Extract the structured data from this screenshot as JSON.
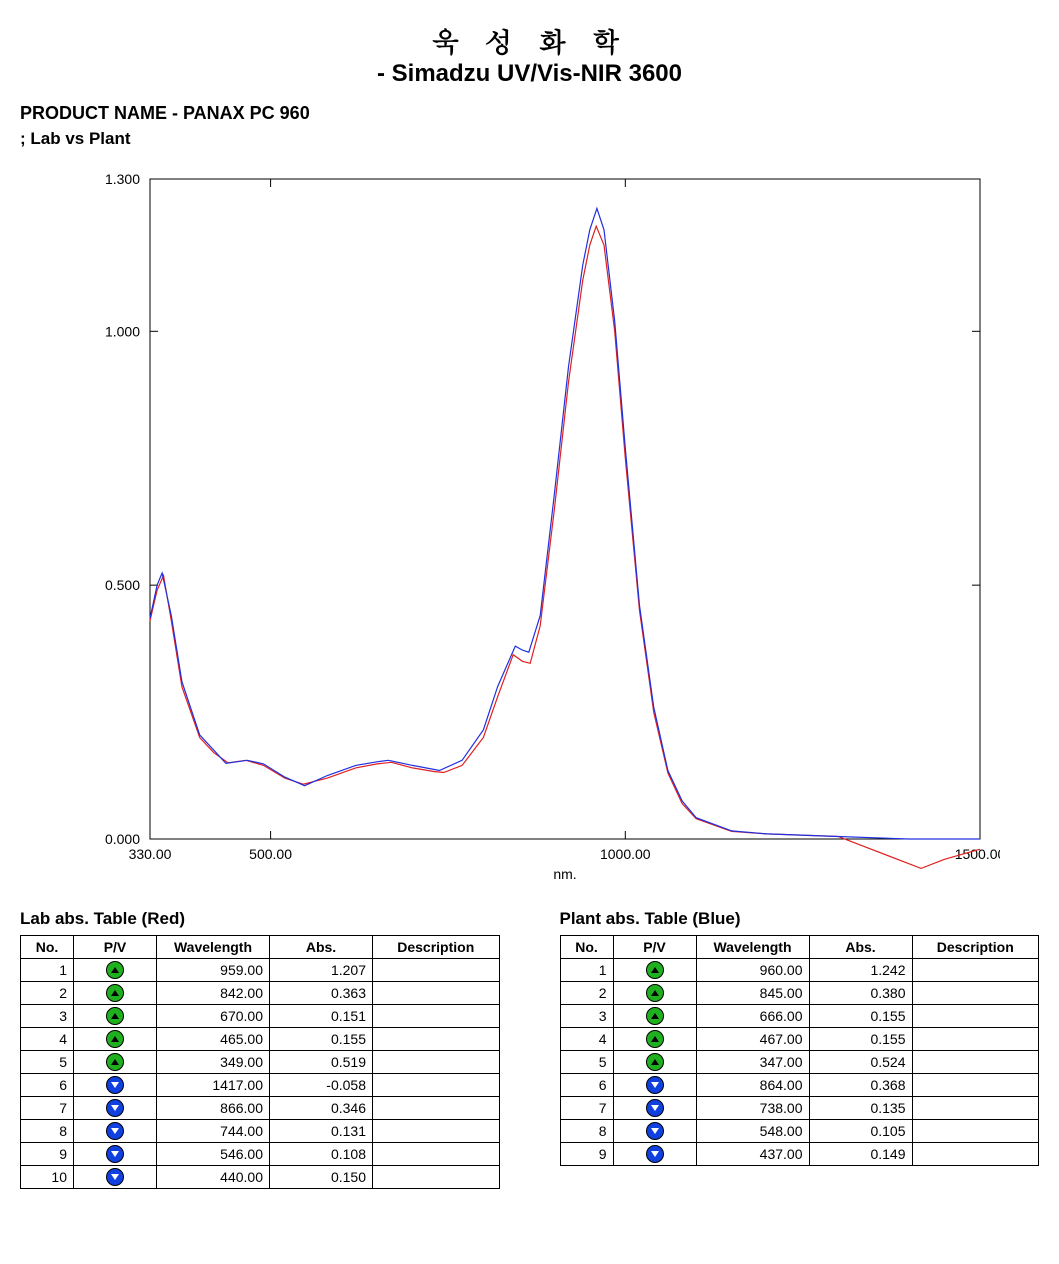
{
  "header": {
    "line1": "욱 성 화 학",
    "line2": "- Simadzu UV/Vis-NIR 3600"
  },
  "product": {
    "label": "PRODUCT NAME - PANAX PC 960",
    "subtitle": "; Lab vs Plant"
  },
  "chart": {
    "type": "line",
    "xlabel": "nm.",
    "xlim": [
      330,
      1500
    ],
    "ylim": [
      0.0,
      1.3
    ],
    "xticks": [
      330.0,
      500.0,
      1000.0,
      1500.0
    ],
    "yticks": [
      0.0,
      0.5,
      1.0,
      1.3
    ],
    "xtick_labels": [
      "330.00",
      "500.00",
      "1000.00",
      "1500.00"
    ],
    "ytick_labels": [
      "0.000",
      "0.500",
      "1.000",
      "1.300"
    ],
    "background_color": "#ffffff",
    "axis_color": "#000000",
    "line_width": 1.2,
    "series": [
      {
        "name": "Lab",
        "color": "#e02020",
        "points": [
          [
            330,
            0.43
          ],
          [
            340,
            0.49
          ],
          [
            349,
            0.519
          ],
          [
            360,
            0.43
          ],
          [
            375,
            0.3
          ],
          [
            400,
            0.2
          ],
          [
            420,
            0.17
          ],
          [
            440,
            0.15
          ],
          [
            465,
            0.155
          ],
          [
            490,
            0.145
          ],
          [
            520,
            0.12
          ],
          [
            546,
            0.108
          ],
          [
            580,
            0.12
          ],
          [
            620,
            0.14
          ],
          [
            650,
            0.148
          ],
          [
            670,
            0.151
          ],
          [
            700,
            0.14
          ],
          [
            730,
            0.133
          ],
          [
            744,
            0.131
          ],
          [
            770,
            0.145
          ],
          [
            800,
            0.2
          ],
          [
            820,
            0.28
          ],
          [
            842,
            0.363
          ],
          [
            855,
            0.35
          ],
          [
            866,
            0.346
          ],
          [
            880,
            0.42
          ],
          [
            900,
            0.65
          ],
          [
            920,
            0.9
          ],
          [
            940,
            1.1
          ],
          [
            950,
            1.17
          ],
          [
            959,
            1.207
          ],
          [
            970,
            1.17
          ],
          [
            985,
            1.0
          ],
          [
            1000,
            0.75
          ],
          [
            1020,
            0.45
          ],
          [
            1040,
            0.25
          ],
          [
            1060,
            0.13
          ],
          [
            1080,
            0.07
          ],
          [
            1100,
            0.04
          ],
          [
            1150,
            0.015
          ],
          [
            1200,
            0.01
          ],
          [
            1300,
            0.005
          ],
          [
            1417,
            -0.058
          ],
          [
            1450,
            -0.04
          ],
          [
            1500,
            -0.02
          ]
        ]
      },
      {
        "name": "Plant",
        "color": "#2030e0",
        "points": [
          [
            330,
            0.435
          ],
          [
            340,
            0.5
          ],
          [
            347,
            0.524
          ],
          [
            360,
            0.44
          ],
          [
            375,
            0.31
          ],
          [
            400,
            0.205
          ],
          [
            420,
            0.175
          ],
          [
            437,
            0.149
          ],
          [
            467,
            0.155
          ],
          [
            490,
            0.148
          ],
          [
            520,
            0.122
          ],
          [
            548,
            0.105
          ],
          [
            580,
            0.125
          ],
          [
            620,
            0.145
          ],
          [
            650,
            0.152
          ],
          [
            666,
            0.155
          ],
          [
            700,
            0.145
          ],
          [
            730,
            0.137
          ],
          [
            738,
            0.135
          ],
          [
            770,
            0.155
          ],
          [
            800,
            0.215
          ],
          [
            820,
            0.3
          ],
          [
            845,
            0.38
          ],
          [
            855,
            0.372
          ],
          [
            864,
            0.368
          ],
          [
            880,
            0.44
          ],
          [
            900,
            0.68
          ],
          [
            920,
            0.93
          ],
          [
            940,
            1.13
          ],
          [
            950,
            1.2
          ],
          [
            960,
            1.242
          ],
          [
            970,
            1.2
          ],
          [
            985,
            1.02
          ],
          [
            1000,
            0.77
          ],
          [
            1020,
            0.46
          ],
          [
            1040,
            0.26
          ],
          [
            1060,
            0.135
          ],
          [
            1080,
            0.075
          ],
          [
            1100,
            0.042
          ],
          [
            1150,
            0.016
          ],
          [
            1200,
            0.01
          ],
          [
            1300,
            0.005
          ],
          [
            1400,
            0.0
          ],
          [
            1450,
            0.0
          ],
          [
            1500,
            0.0
          ]
        ]
      }
    ]
  },
  "tables": {
    "lab": {
      "title": "Lab abs. Table (Red)",
      "columns": [
        "No.",
        "P/V",
        "Wavelength",
        "Abs.",
        "Description"
      ],
      "rows": [
        {
          "no": "1",
          "pv": "peak",
          "wl": "959.00",
          "abs": "1.207",
          "desc": ""
        },
        {
          "no": "2",
          "pv": "peak",
          "wl": "842.00",
          "abs": "0.363",
          "desc": ""
        },
        {
          "no": "3",
          "pv": "peak",
          "wl": "670.00",
          "abs": "0.151",
          "desc": ""
        },
        {
          "no": "4",
          "pv": "peak",
          "wl": "465.00",
          "abs": "0.155",
          "desc": ""
        },
        {
          "no": "5",
          "pv": "peak",
          "wl": "349.00",
          "abs": "0.519",
          "desc": ""
        },
        {
          "no": "6",
          "pv": "valley",
          "wl": "1417.00",
          "abs": "-0.058",
          "desc": ""
        },
        {
          "no": "7",
          "pv": "valley",
          "wl": "866.00",
          "abs": "0.346",
          "desc": ""
        },
        {
          "no": "8",
          "pv": "valley",
          "wl": "744.00",
          "abs": "0.131",
          "desc": ""
        },
        {
          "no": "9",
          "pv": "valley",
          "wl": "546.00",
          "abs": "0.108",
          "desc": ""
        },
        {
          "no": "10",
          "pv": "valley",
          "wl": "440.00",
          "abs": "0.150",
          "desc": ""
        }
      ]
    },
    "plant": {
      "title": "Plant abs. Table (Blue)",
      "columns": [
        "No.",
        "P/V",
        "Wavelength",
        "Abs.",
        "Description"
      ],
      "rows": [
        {
          "no": "1",
          "pv": "peak",
          "wl": "960.00",
          "abs": "1.242",
          "desc": ""
        },
        {
          "no": "2",
          "pv": "peak",
          "wl": "845.00",
          "abs": "0.380",
          "desc": ""
        },
        {
          "no": "3",
          "pv": "peak",
          "wl": "666.00",
          "abs": "0.155",
          "desc": ""
        },
        {
          "no": "4",
          "pv": "peak",
          "wl": "467.00",
          "abs": "0.155",
          "desc": ""
        },
        {
          "no": "5",
          "pv": "peak",
          "wl": "347.00",
          "abs": "0.524",
          "desc": ""
        },
        {
          "no": "6",
          "pv": "valley",
          "wl": "864.00",
          "abs": "0.368",
          "desc": ""
        },
        {
          "no": "7",
          "pv": "valley",
          "wl": "738.00",
          "abs": "0.135",
          "desc": ""
        },
        {
          "no": "8",
          "pv": "valley",
          "wl": "548.00",
          "abs": "0.105",
          "desc": ""
        },
        {
          "no": "9",
          "pv": "valley",
          "wl": "437.00",
          "abs": "0.149",
          "desc": ""
        }
      ]
    }
  }
}
